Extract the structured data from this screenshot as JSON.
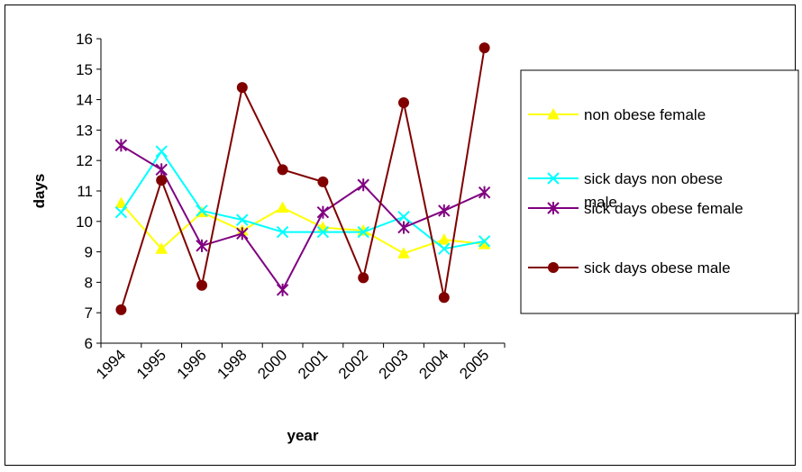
{
  "chart_data": {
    "type": "line",
    "xlabel": "year",
    "ylabel": "days",
    "ylim": [
      6,
      16
    ],
    "y_ticks": [
      6,
      7,
      8,
      9,
      10,
      11,
      12,
      13,
      14,
      15,
      16
    ],
    "categories": [
      "1994",
      "1995",
      "1996",
      "1998",
      "2000",
      "2001",
      "2002",
      "2003",
      "2004",
      "2005"
    ],
    "grid": false,
    "legend_position": "right",
    "series": [
      {
        "name": "non obese female",
        "color": "#ffff00",
        "marker": "triangle",
        "values": [
          10.6,
          9.1,
          10.3,
          9.7,
          10.45,
          9.8,
          9.7,
          8.95,
          9.4,
          9.25
        ]
      },
      {
        "name": "sick days non obese male",
        "legend_lines": [
          "sick days non obese",
          "male"
        ],
        "color": "#00ffff",
        "marker": "x",
        "values": [
          10.3,
          12.3,
          10.35,
          10.05,
          9.65,
          9.65,
          9.65,
          10.15,
          9.1,
          9.35
        ]
      },
      {
        "name": "sick days obese female",
        "color": "#800080",
        "marker": "star",
        "values": [
          12.5,
          11.7,
          9.2,
          9.6,
          7.75,
          10.3,
          11.2,
          9.8,
          10.35,
          10.95
        ]
      },
      {
        "name": "sick days obese male",
        "color": "#800000",
        "marker": "circle",
        "values": [
          7.1,
          11.35,
          7.9,
          14.4,
          11.7,
          11.3,
          8.15,
          13.9,
          7.5,
          15.7
        ]
      }
    ]
  }
}
